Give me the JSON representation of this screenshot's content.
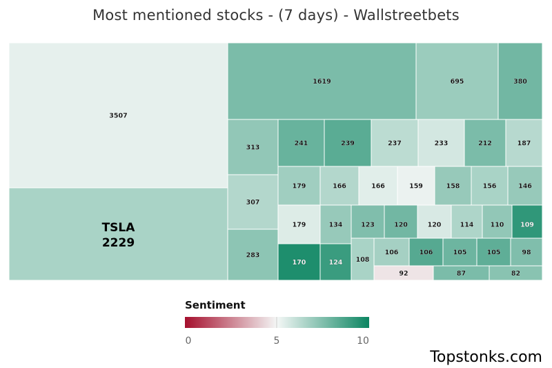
{
  "title": "Most mentioned stocks - (7 days) - Wallstreetbets",
  "brand": "Topstonks.com",
  "legend": {
    "title": "Sentiment",
    "ticks": [
      {
        "label": "0",
        "value": 0
      },
      {
        "label": "5",
        "value": 5
      },
      {
        "label": "10",
        "value": 10
      }
    ],
    "colors": {
      "low": "#a50f2d",
      "mid": "#f4f7f6",
      "high": "#0b8561"
    }
  },
  "chart_data": {
    "type": "treemap",
    "title": "Most mentioned stocks - (7 days) - Wallstreetbets",
    "color_scale": {
      "label": "Sentiment",
      "min": 0,
      "mid": 5,
      "max": 10
    },
    "tiles": [
      {
        "label": "",
        "value": 3507,
        "sentiment": 5.3
      },
      {
        "label": "TSLA",
        "value": 2229,
        "sentiment": 6.6
      },
      {
        "label": "",
        "value": 1619,
        "sentiment": 7.6
      },
      {
        "label": "",
        "value": 695,
        "sentiment": 6.9
      },
      {
        "label": "",
        "value": 380,
        "sentiment": 7.8
      },
      {
        "label": "",
        "value": 313,
        "sentiment": 7.1
      },
      {
        "label": "",
        "value": 307,
        "sentiment": 6.4
      },
      {
        "label": "",
        "value": 283,
        "sentiment": 7.2
      },
      {
        "label": "",
        "value": 241,
        "sentiment": 8.0
      },
      {
        "label": "",
        "value": 239,
        "sentiment": 8.3
      },
      {
        "label": "",
        "value": 237,
        "sentiment": 6.2
      },
      {
        "label": "",
        "value": 233,
        "sentiment": 5.7
      },
      {
        "label": "",
        "value": 212,
        "sentiment": 7.6
      },
      {
        "label": "",
        "value": 187,
        "sentiment": 6.3
      },
      {
        "label": "",
        "value": 179,
        "sentiment": 6.8
      },
      {
        "label": "",
        "value": 166,
        "sentiment": 6.4
      },
      {
        "label": "",
        "value": 166,
        "sentiment": 5.4
      },
      {
        "label": "",
        "value": 159,
        "sentiment": 5.2
      },
      {
        "label": "",
        "value": 158,
        "sentiment": 7.0
      },
      {
        "label": "",
        "value": 156,
        "sentiment": 6.6
      },
      {
        "label": "",
        "value": 146,
        "sentiment": 7.0
      },
      {
        "label": "",
        "value": 313,
        "sentiment": 7.1
      },
      {
        "label": "",
        "value": 179,
        "sentiment": 5.5
      },
      {
        "label": "",
        "value": 134,
        "sentiment": 7.0
      },
      {
        "label": "",
        "value": 123,
        "sentiment": 7.5
      },
      {
        "label": "",
        "value": 120,
        "sentiment": 7.8
      },
      {
        "label": "",
        "value": 120,
        "sentiment": 5.6
      },
      {
        "label": "",
        "value": 114,
        "sentiment": 6.5
      },
      {
        "label": "",
        "value": 110,
        "sentiment": 7.1
      },
      {
        "label": "",
        "value": 109,
        "sentiment": 9.2
      },
      {
        "label": "",
        "value": 108,
        "sentiment": 6.6
      },
      {
        "label": "",
        "value": 106,
        "sentiment": 6.7
      },
      {
        "label": "",
        "value": 106,
        "sentiment": 8.4
      },
      {
        "label": "",
        "value": 105,
        "sentiment": 7.9
      },
      {
        "label": "",
        "value": 105,
        "sentiment": 8.2
      },
      {
        "label": "",
        "value": 98,
        "sentiment": 7.5
      },
      {
        "label": "",
        "value": 170,
        "sentiment": 9.6
      },
      {
        "label": "",
        "value": 124,
        "sentiment": 9.0
      },
      {
        "label": "",
        "value": 92,
        "sentiment": 4.6
      },
      {
        "label": "",
        "value": 87,
        "sentiment": 7.6
      },
      {
        "label": "",
        "value": 82,
        "sentiment": 7.3
      }
    ]
  }
}
